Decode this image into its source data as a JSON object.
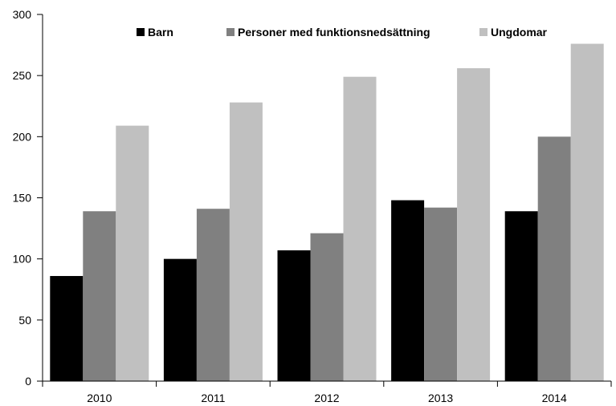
{
  "chart_data": {
    "type": "bar",
    "title": "",
    "xlabel": "",
    "ylabel": "",
    "categories": [
      "2010",
      "2011",
      "2012",
      "2013",
      "2014"
    ],
    "series": [
      {
        "name": "Barn",
        "color": "#000000",
        "values": [
          86,
          100,
          107,
          148,
          139
        ]
      },
      {
        "name": "Personer med funktionsnedsättning",
        "color": "#808080",
        "values": [
          139,
          141,
          121,
          142,
          200
        ]
      },
      {
        "name": "Ungdomar",
        "color": "#c0c0c0",
        "values": [
          209,
          228,
          249,
          256,
          276
        ]
      }
    ],
    "ylim": [
      0,
      300
    ],
    "yticks": [
      0,
      50,
      100,
      150,
      200,
      250,
      300
    ],
    "grid": false,
    "legend_position": "top"
  }
}
